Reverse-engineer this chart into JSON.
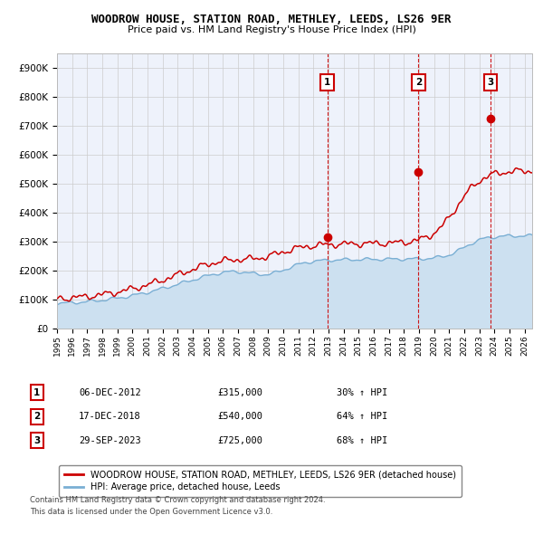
{
  "title": "WOODROW HOUSE, STATION ROAD, METHLEY, LEEDS, LS26 9ER",
  "subtitle": "Price paid vs. HM Land Registry's House Price Index (HPI)",
  "ylabel_ticks": [
    "£0",
    "£100K",
    "£200K",
    "£300K",
    "£400K",
    "£500K",
    "£600K",
    "£700K",
    "£800K",
    "£900K"
  ],
  "ytick_values": [
    0,
    100000,
    200000,
    300000,
    400000,
    500000,
    600000,
    700000,
    800000,
    900000
  ],
  "ylim": [
    0,
    950000
  ],
  "xlim_start": 1995.0,
  "xlim_end": 2026.5,
  "trans_dates": [
    2012.92,
    2018.96,
    2023.75
  ],
  "trans_prices": [
    315000,
    540000,
    725000
  ],
  "trans_labels": [
    "1",
    "2",
    "3"
  ],
  "transaction_dates_str": [
    "06-DEC-2012",
    "17-DEC-2018",
    "29-SEP-2023"
  ],
  "transaction_prices_str": [
    "£315,000",
    "£540,000",
    "£725,000"
  ],
  "transaction_hpi_str": [
    "30% ↑ HPI",
    "64% ↑ HPI",
    "68% ↑ HPI"
  ],
  "property_color": "#cc0000",
  "hpi_color": "#7aafd4",
  "hpi_fill_color": "#cce0f0",
  "vline_color": "#cc0000",
  "legend_property_label": "WOODROW HOUSE, STATION ROAD, METHLEY, LEEDS, LS26 9ER (detached house)",
  "legend_hpi_label": "HPI: Average price, detached house, Leeds",
  "footnote1": "Contains HM Land Registry data © Crown copyright and database right 2024.",
  "footnote2": "This data is licensed under the Open Government Licence v3.0.",
  "background_color": "#ffffff",
  "plot_bg_color": "#eef2fb"
}
